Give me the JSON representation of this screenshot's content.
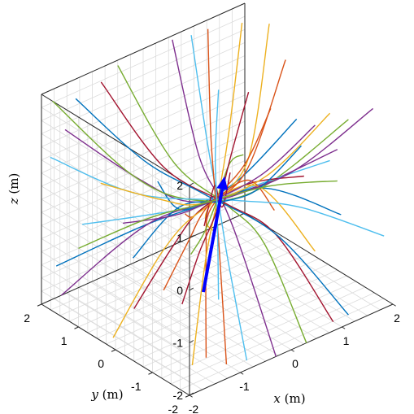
{
  "chart_data": {
    "type": "line",
    "title": "",
    "xlabel": {
      "var": "x",
      "unit": " (m)"
    },
    "ylabel": {
      "var": "y",
      "unit": " (m)"
    },
    "zlabel": {
      "var": "z",
      "unit": " (m)"
    },
    "xlim": [
      -2,
      2
    ],
    "ylim": [
      -2,
      2
    ],
    "zlim": [
      -2,
      2
    ],
    "x_ticks": [
      "-2",
      "-1",
      "0",
      "1",
      "2"
    ],
    "y_ticks": [
      "-2",
      "-1",
      "0",
      "1",
      "2"
    ],
    "z_ticks": [
      "-2",
      "-1",
      "0",
      "1",
      "2"
    ],
    "grid": true,
    "box": "3D box with grid on back walls and floor",
    "line_colors": [
      "#0072BD",
      "#D95319",
      "#EDB120",
      "#7E2F8E",
      "#77AC30",
      "#4DBEEE",
      "#A2142F"
    ],
    "streamlines": [
      [
        [
          -1.9,
          -1.0,
          1.6
        ],
        [
          -1.2,
          -0.5,
          0.6
        ],
        [
          -0.5,
          -0.05,
          0.1
        ],
        [
          0.6,
          0.2,
          0.05
        ],
        [
          2.0,
          0.6,
          0.4
        ]
      ],
      [
        [
          -1.8,
          -1.6,
          1.2
        ],
        [
          -1.0,
          -0.7,
          0.4
        ],
        [
          -0.3,
          -0.1,
          0.05
        ],
        [
          0.8,
          0.3,
          0.08
        ],
        [
          2.0,
          0.9,
          1.4
        ]
      ],
      [
        [
          -1.5,
          -2.0,
          0.9
        ],
        [
          -0.8,
          -0.8,
          0.25
        ],
        [
          -0.2,
          -0.1,
          0.03
        ],
        [
          0.9,
          0.4,
          0.2
        ],
        [
          1.9,
          1.2,
          2.0
        ]
      ],
      [
        [
          -1.9,
          1.5,
          1.5
        ],
        [
          -1.0,
          0.7,
          0.5
        ],
        [
          -0.4,
          0.1,
          0.08
        ],
        [
          0.7,
          -0.2,
          0.05
        ],
        [
          2.0,
          -0.5,
          0.3
        ]
      ],
      [
        [
          -2.0,
          1.7,
          2.0
        ],
        [
          -1.1,
          0.8,
          0.6
        ],
        [
          -0.4,
          0.15,
          0.1
        ],
        [
          0.6,
          -0.3,
          0.06
        ],
        [
          2.0,
          -0.8,
          1.0
        ]
      ],
      [
        [
          -2.0,
          0.9,
          0.0
        ],
        [
          -1.1,
          0.4,
          0.0
        ],
        [
          -0.3,
          0.05,
          0.0
        ],
        [
          0.8,
          -0.1,
          0.0
        ],
        [
          2.0,
          -0.3,
          0.0
        ]
      ],
      [
        [
          -2.0,
          -0.5,
          -1.0
        ],
        [
          -1.0,
          -0.2,
          -0.35
        ],
        [
          -0.3,
          0.0,
          -0.05
        ],
        [
          0.7,
          0.1,
          -0.05
        ],
        [
          2.0,
          0.4,
          -0.6
        ]
      ],
      [
        [
          -2.0,
          1.6,
          -1.1
        ],
        [
          -1.0,
          0.7,
          -0.4
        ],
        [
          -0.3,
          0.1,
          -0.05
        ],
        [
          0.8,
          -0.2,
          -0.05
        ],
        [
          2.0,
          -0.6,
          -0.9
        ]
      ],
      [
        [
          -1.6,
          -1.9,
          -1.5
        ],
        [
          -0.8,
          -0.8,
          -0.4
        ],
        [
          -0.2,
          -0.1,
          -0.05
        ],
        [
          0.9,
          0.4,
          -0.2
        ],
        [
          2.0,
          1.2,
          -1.6
        ]
      ],
      [
        [
          -1.9,
          0.2,
          -1.9
        ],
        [
          -1.0,
          0.1,
          -0.6
        ],
        [
          -0.3,
          0.0,
          -0.08
        ],
        [
          0.8,
          0.0,
          -0.1
        ],
        [
          2.0,
          0.1,
          -1.9
        ]
      ],
      [
        [
          -0.3,
          -2.0,
          -2.0
        ],
        [
          -0.2,
          -1.0,
          -0.6
        ],
        [
          0.0,
          -0.2,
          -0.05
        ],
        [
          0.3,
          0.9,
          0.3
        ],
        [
          0.5,
          1.9,
          2.0
        ]
      ],
      [
        [
          0.3,
          -2.0,
          -2.0
        ],
        [
          0.2,
          -1.0,
          -0.5
        ],
        [
          0.05,
          -0.2,
          -0.05
        ],
        [
          -0.2,
          0.9,
          0.4
        ],
        [
          -0.5,
          2.0,
          1.9
        ]
      ],
      [
        [
          -0.8,
          -1.9,
          -1.9
        ],
        [
          -0.5,
          -1.0,
          -0.6
        ],
        [
          -0.1,
          -0.2,
          -0.04
        ],
        [
          0.4,
          0.8,
          0.5
        ],
        [
          0.8,
          1.8,
          2.0
        ]
      ],
      [
        [
          0.9,
          -1.9,
          -1.9
        ],
        [
          0.5,
          -0.9,
          -0.5
        ],
        [
          0.05,
          -0.15,
          -0.03
        ],
        [
          -0.4,
          0.9,
          0.4
        ],
        [
          -0.9,
          1.9,
          1.8
        ]
      ],
      [
        [
          -1.4,
          1.9,
          1.7
        ],
        [
          -0.7,
          1.0,
          0.6
        ],
        [
          -0.1,
          0.2,
          0.05
        ],
        [
          0.6,
          -0.8,
          -0.6
        ],
        [
          1.2,
          -1.9,
          -1.9
        ]
      ],
      [
        [
          1.2,
          1.9,
          1.9
        ],
        [
          0.6,
          1.0,
          0.6
        ],
        [
          0.1,
          0.2,
          0.05
        ],
        [
          -0.6,
          -0.9,
          -0.5
        ],
        [
          -1.2,
          -1.9,
          -1.8
        ]
      ],
      [
        [
          1.8,
          1.8,
          1.8
        ],
        [
          0.9,
          0.9,
          0.6
        ],
        [
          0.2,
          0.2,
          0.05
        ],
        [
          -0.8,
          -0.8,
          -0.4
        ],
        [
          -1.8,
          -1.8,
          -1.6
        ]
      ],
      [
        [
          1.9,
          -1.6,
          1.6
        ],
        [
          1.0,
          -0.8,
          0.5
        ],
        [
          0.2,
          -0.15,
          0.04
        ],
        [
          -0.8,
          0.7,
          -0.4
        ],
        [
          -1.9,
          1.6,
          -1.7
        ]
      ],
      [
        [
          -1.9,
          -1.9,
          0.6
        ],
        [
          -1.0,
          -1.0,
          0.2
        ],
        [
          -0.2,
          -0.2,
          0.02
        ],
        [
          0.9,
          0.9,
          -0.1
        ],
        [
          1.9,
          1.9,
          -0.8
        ]
      ],
      [
        [
          1.9,
          -1.9,
          -0.7
        ],
        [
          1.0,
          -0.9,
          -0.2
        ],
        [
          0.2,
          -0.2,
          -0.02
        ],
        [
          -0.9,
          0.9,
          0.1
        ],
        [
          -1.9,
          1.9,
          0.8
        ]
      ],
      [
        [
          -1.2,
          -2.0,
          1.9
        ],
        [
          -0.6,
          -1.0,
          0.6
        ],
        [
          -0.1,
          -0.2,
          0.05
        ],
        [
          0.6,
          0.9,
          -0.4
        ],
        [
          1.2,
          2.0,
          -1.9
        ]
      ],
      [
        [
          0.2,
          -2.0,
          1.8
        ],
        [
          0.1,
          -1.0,
          0.6
        ],
        [
          0.0,
          -0.2,
          0.05
        ],
        [
          -0.1,
          0.9,
          -0.5
        ],
        [
          -0.2,
          2.0,
          -1.9
        ]
      ],
      [
        [
          -2.0,
          -1.3,
          -0.3
        ],
        [
          -1.0,
          -0.6,
          -0.1
        ],
        [
          -0.3,
          -0.1,
          -0.01
        ],
        [
          0.9,
          0.5,
          0.05
        ],
        [
          2.0,
          1.3,
          0.3
        ]
      ],
      [
        [
          -2.0,
          0.4,
          1.0
        ],
        [
          -1.0,
          0.2,
          0.35
        ],
        [
          -0.3,
          0.0,
          0.05
        ],
        [
          0.9,
          -0.1,
          0.1
        ],
        [
          2.0,
          -0.3,
          0.9
        ]
      ],
      [
        [
          -2.0,
          -0.2,
          0.5
        ],
        [
          -1.0,
          -0.1,
          0.15
        ],
        [
          -0.3,
          0.0,
          0.02
        ],
        [
          0.9,
          0.05,
          0.05
        ],
        [
          2.0,
          0.1,
          0.5
        ]
      ],
      [
        [
          -2.0,
          1.0,
          -0.5
        ],
        [
          -1.0,
          0.5,
          -0.15
        ],
        [
          -0.3,
          0.1,
          -0.02
        ],
        [
          0.9,
          -0.2,
          -0.05
        ],
        [
          2.0,
          -0.5,
          -0.3
        ]
      ],
      [
        [
          0.1,
          0.1,
          -2.0
        ],
        [
          0.05,
          0.05,
          -1.0
        ],
        [
          0.0,
          0.0,
          -0.2
        ],
        [
          0.0,
          0.05,
          0.8
        ],
        [
          0.1,
          0.1,
          2.0
        ]
      ],
      [
        [
          -0.4,
          0.4,
          -2.0
        ],
        [
          -0.2,
          0.2,
          -1.0
        ],
        [
          0.0,
          0.0,
          -0.2
        ],
        [
          0.2,
          -0.1,
          0.8
        ],
        [
          0.4,
          -0.3,
          2.0
        ]
      ]
    ],
    "arrow": {
      "from": [
        -1.0,
        -1.0,
        -0.9
      ],
      "to": [
        0.8,
        0.9,
        -0.3
      ],
      "color": "#0000FF"
    }
  }
}
